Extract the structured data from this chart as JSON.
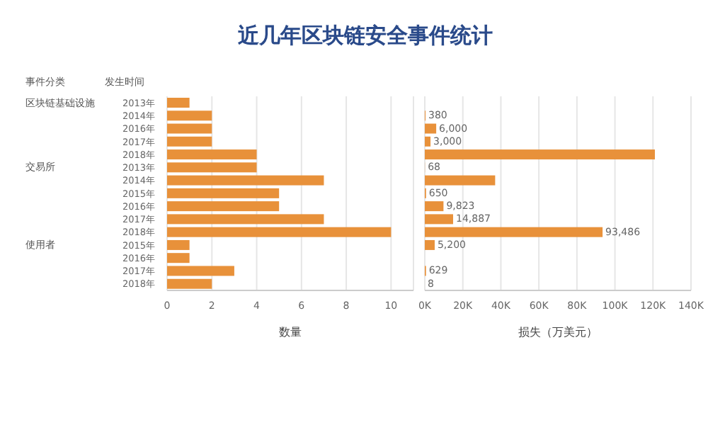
{
  "chart_data": [
    {
      "type": "bar",
      "orientation": "horizontal",
      "title": "近几年区块链安全事件统计",
      "xlabel": "数量",
      "categories": [
        "2013年",
        "2014年",
        "2016年",
        "2017年",
        "2018年",
        "2013年",
        "2014年",
        "2015年",
        "2016年",
        "2017年",
        "2018年",
        "2015年",
        "2016年",
        "2017年",
        "2018年"
      ],
      "series": [
        {
          "color": "#e8913a",
          "values": [
            1,
            2,
            2,
            2,
            4,
            4,
            7,
            5,
            5,
            7,
            10,
            1,
            1,
            3,
            2
          ]
        }
      ],
      "xlim": [
        0,
        11
      ],
      "xticks": [
        0,
        2,
        4,
        6,
        8,
        10
      ],
      "grid": "x",
      "annotations": [
        "事件分类",
        "发生时间",
        "区块链基础设施",
        "交易所",
        "使用者"
      ]
    },
    {
      "type": "bar",
      "orientation": "horizontal",
      "xlabel": "损失（万美元）",
      "series": [
        {
          "color": "#e8913a",
          "values": [
            null,
            380,
            6000,
            3000,
            121000,
            68,
            37000,
            650,
            9823,
            14887,
            93486,
            5200,
            null,
            629,
            8
          ],
          "value_labels": [
            null,
            "380",
            "6,000",
            "3,000",
            null,
            "68",
            null,
            "650",
            "9,823",
            "14,887",
            "93,486",
            "5,200",
            null,
            "629",
            "8"
          ]
        }
      ],
      "xlim": [
        0,
        140000
      ],
      "xticks": [
        {
          "value": 0,
          "label": "0K"
        },
        {
          "value": 20000,
          "label": "20K"
        },
        {
          "value": 40000,
          "label": "40K"
        },
        {
          "value": 60000,
          "label": "60K"
        },
        {
          "value": 80000,
          "label": "80K"
        },
        {
          "value": 100000,
          "label": "100K"
        },
        {
          "value": 120000,
          "label": "120K"
        },
        {
          "value": 140000,
          "label": "140K"
        }
      ],
      "grid": "x",
      "tick_labels": "x"
    }
  ]
}
